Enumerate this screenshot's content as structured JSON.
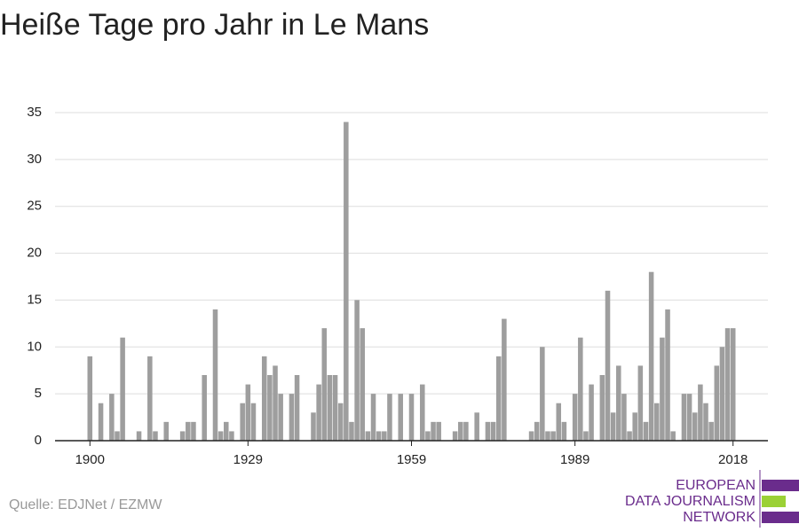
{
  "chart_data": {
    "type": "bar",
    "title": "Heiße Tage pro Jahr in Le Mans",
    "source": "Quelle: EDJNet / EZMW",
    "logo": [
      "EUROPEAN",
      "DATA JOURNALISM",
      "NETWORK"
    ],
    "x": [
      1900,
      1901,
      1902,
      1903,
      1904,
      1905,
      1906,
      1907,
      1908,
      1909,
      1910,
      1911,
      1912,
      1913,
      1914,
      1915,
      1916,
      1917,
      1918,
      1919,
      1920,
      1921,
      1922,
      1923,
      1924,
      1925,
      1926,
      1927,
      1928,
      1929,
      1930,
      1931,
      1932,
      1933,
      1934,
      1935,
      1936,
      1937,
      1938,
      1939,
      1940,
      1941,
      1942,
      1943,
      1944,
      1945,
      1946,
      1947,
      1948,
      1949,
      1950,
      1951,
      1952,
      1953,
      1954,
      1955,
      1956,
      1957,
      1958,
      1959,
      1960,
      1961,
      1962,
      1963,
      1964,
      1965,
      1966,
      1967,
      1968,
      1969,
      1970,
      1971,
      1972,
      1973,
      1974,
      1975,
      1976,
      1977,
      1978,
      1979,
      1980,
      1981,
      1982,
      1983,
      1984,
      1985,
      1986,
      1987,
      1988,
      1989,
      1990,
      1991,
      1992,
      1993,
      1994,
      1995,
      1996,
      1997,
      1998,
      1999,
      2000,
      2001,
      2002,
      2003,
      2004,
      2005,
      2006,
      2007,
      2008,
      2009,
      2010,
      2011,
      2012,
      2013,
      2014,
      2015,
      2016,
      2017,
      2018
    ],
    "values": [
      9,
      0,
      4,
      0,
      5,
      1,
      11,
      0,
      0,
      1,
      0,
      9,
      1,
      0,
      2,
      0,
      0,
      1,
      2,
      2,
      0,
      7,
      0,
      14,
      1,
      2,
      1,
      0,
      4,
      6,
      4,
      0,
      9,
      7,
      8,
      5,
      0,
      5,
      7,
      0,
      0,
      3,
      6,
      12,
      7,
      7,
      4,
      34,
      2,
      15,
      12,
      1,
      5,
      1,
      1,
      5,
      0,
      5,
      0,
      5,
      0,
      6,
      1,
      2,
      2,
      0,
      0,
      1,
      2,
      2,
      0,
      3,
      0,
      2,
      2,
      9,
      13,
      0,
      0,
      0,
      0,
      1,
      2,
      10,
      1,
      1,
      4,
      2,
      0,
      5,
      11,
      1,
      6,
      0,
      7,
      16,
      3,
      8,
      5,
      1,
      3,
      8,
      2,
      18,
      4,
      11,
      14,
      1,
      0,
      5,
      5,
      3,
      6,
      4,
      2,
      8,
      10,
      12,
      12
    ],
    "color": "#9e9e9e",
    "xlim": [
      1893.6,
      2024.4
    ],
    "xticks": [
      1900,
      1929,
      1959,
      1989,
      2018
    ],
    "ylim": [
      0,
      35
    ],
    "yticks": [
      0,
      5,
      10,
      15,
      20,
      25,
      30,
      35
    ],
    "grid": true
  }
}
